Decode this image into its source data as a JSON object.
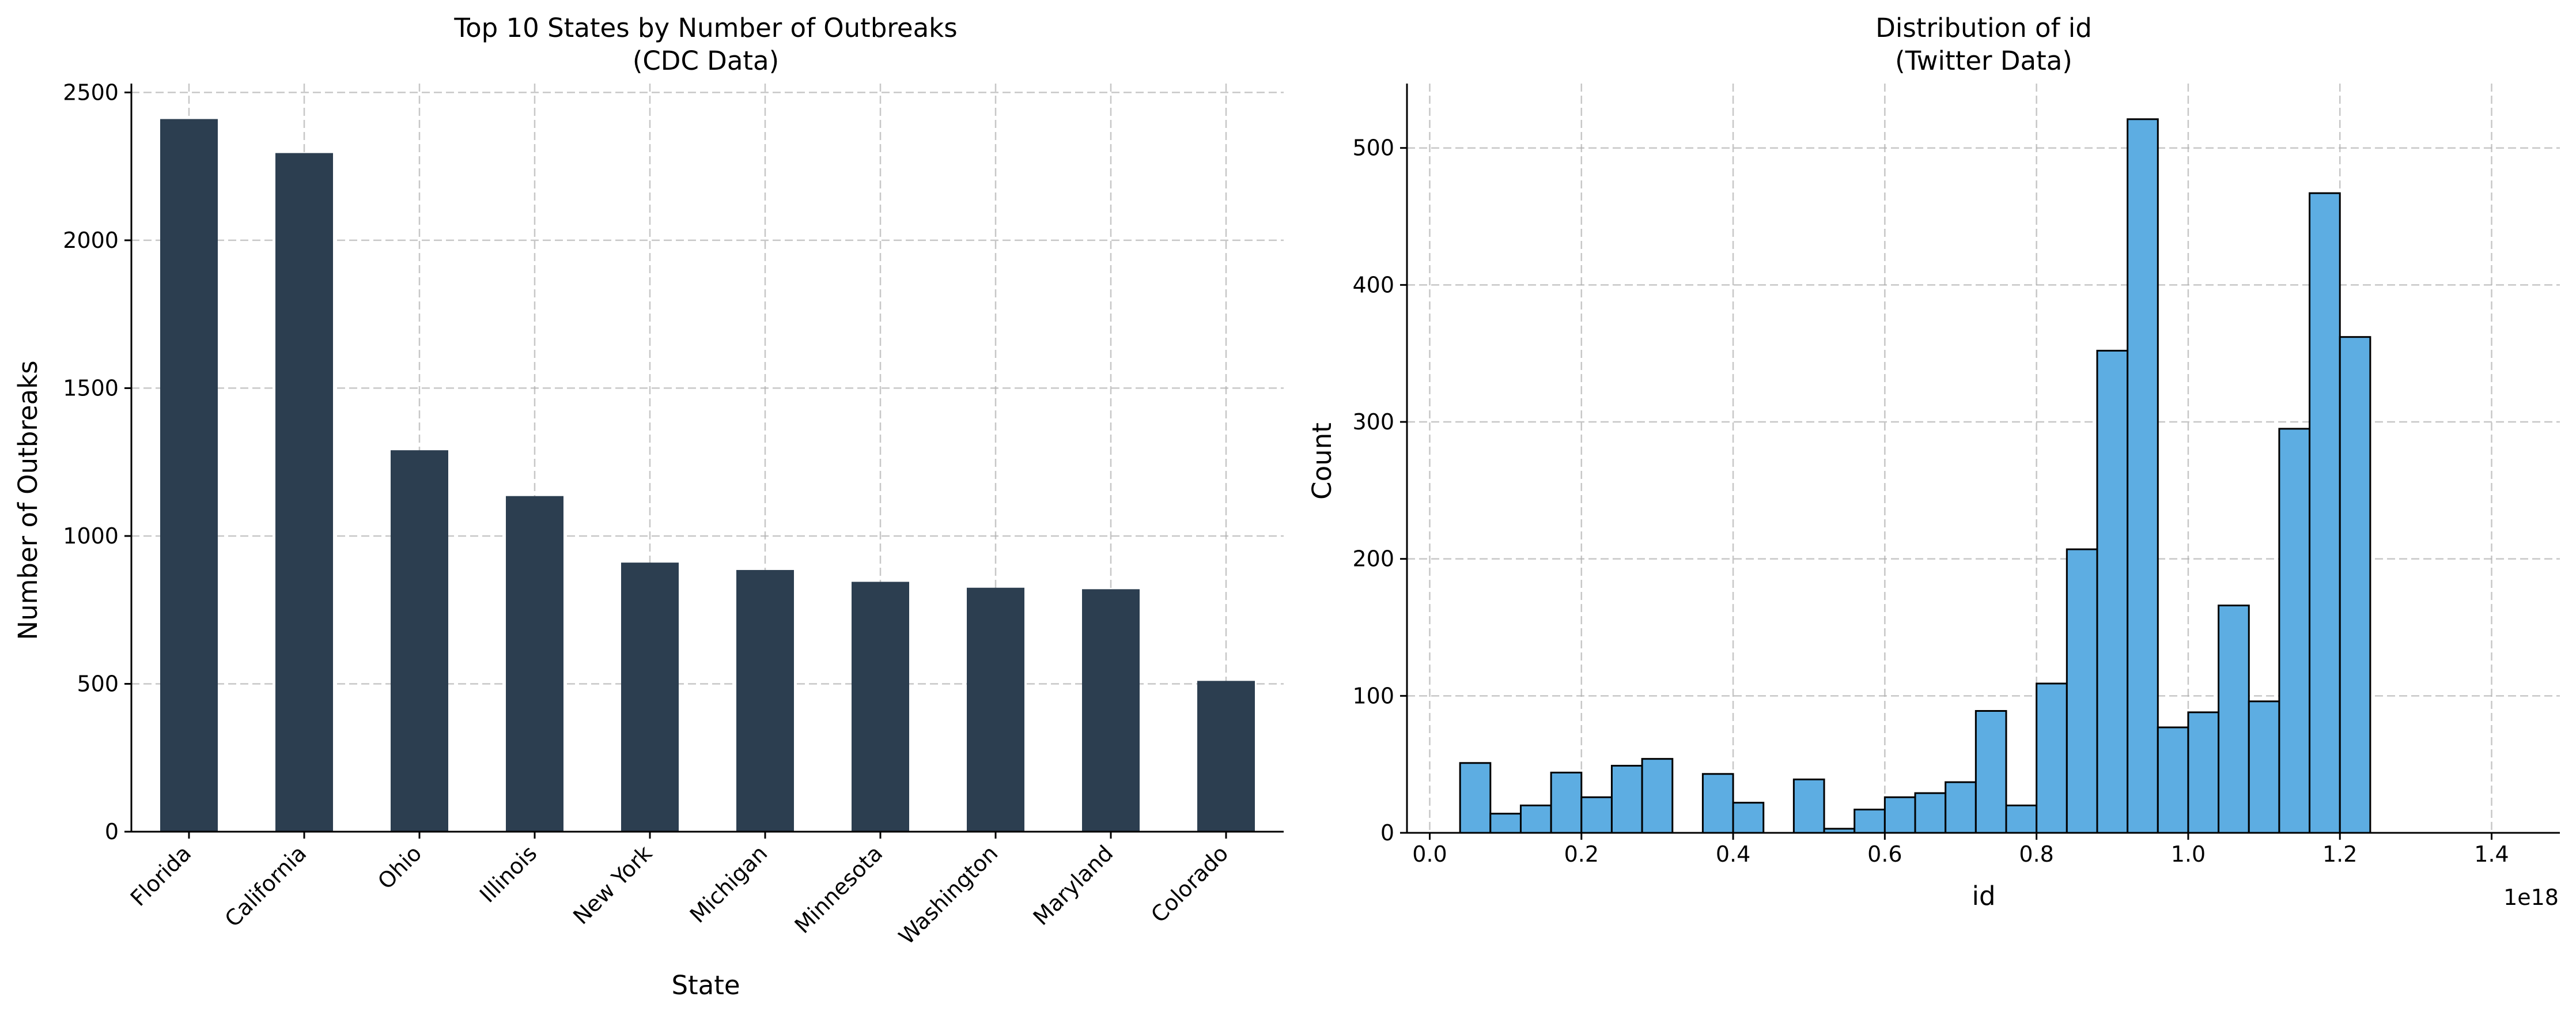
{
  "chart_data": [
    {
      "type": "bar",
      "title": "Top 10 States by Number of Outbreaks\n(CDC Data)",
      "xlabel": "State",
      "ylabel": "Number of Outbreaks",
      "categories": [
        "Florida",
        "California",
        "Ohio",
        "Illinois",
        "New York",
        "Michigan",
        "Minnesota",
        "Washington",
        "Maryland",
        "Colorado"
      ],
      "values": [
        2410,
        2295,
        1290,
        1135,
        910,
        885,
        845,
        825,
        820,
        510
      ],
      "ylim": [
        0,
        2530
      ],
      "yticks": [
        0,
        500,
        1000,
        1500,
        2000,
        2500
      ],
      "grid": true,
      "bar_color": "#2c3e50"
    },
    {
      "type": "histogram",
      "title": "Distribution of id\n(Twitter Data)",
      "xlabel": "id",
      "ylabel": "Count",
      "offset_label": "1e18",
      "bin_width": 0.04,
      "bins_start": 0.04,
      "values": [
        51,
        14,
        20,
        44,
        26,
        49,
        54,
        0,
        43,
        22,
        0,
        39,
        3,
        17,
        26,
        29,
        37,
        89,
        20,
        109,
        207,
        352,
        521,
        77,
        88,
        166,
        96,
        295,
        467,
        362
      ],
      "xlim": [
        -0.03,
        1.49
      ],
      "ylim": [
        0,
        547
      ],
      "xticks": [
        0.0,
        0.2,
        0.4,
        0.6,
        0.8,
        1.0,
        1.2,
        1.4
      ],
      "yticks": [
        0,
        100,
        200,
        300,
        400,
        500
      ],
      "grid": true,
      "bar_color": "#5dade2",
      "edge_color": "#000000"
    }
  ]
}
